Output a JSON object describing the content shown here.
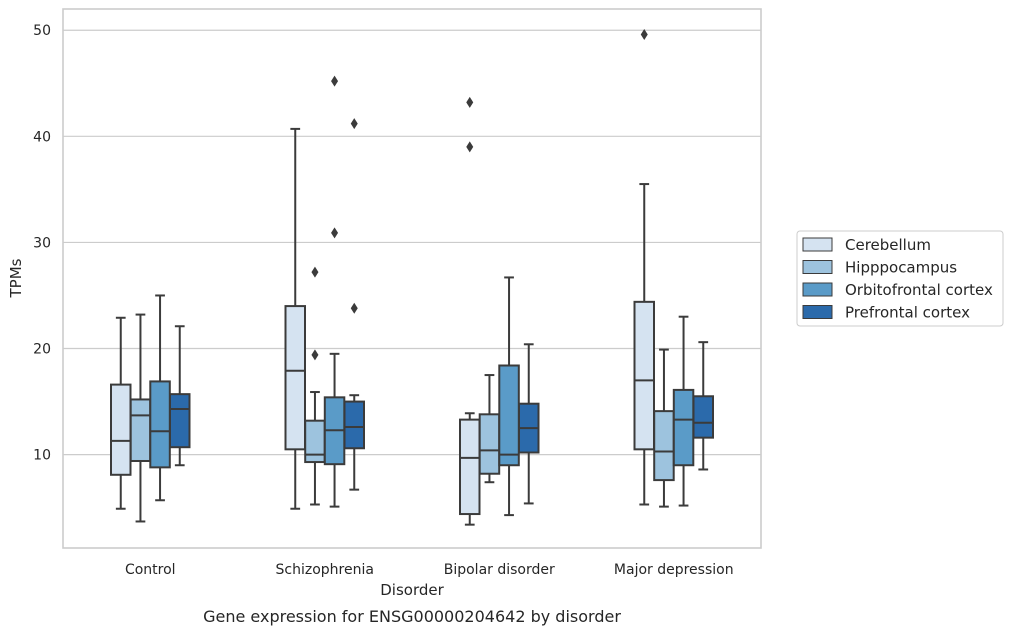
{
  "caption": "Gene expression for ENSG00000204642 by disorder",
  "chart_data": {
    "type": "box",
    "xlabel": "Disorder",
    "ylabel": "TPMs",
    "ylim": [
      1.2,
      52
    ],
    "yticks": [
      10,
      20,
      30,
      40,
      50
    ],
    "grid": "horizontal",
    "legend_position": "right",
    "categories": [
      "Control",
      "Schizophrenia",
      "Bipolar disorder",
      "Major depression"
    ],
    "series": [
      {
        "name": "Cerebellum",
        "color": "#d5e3f1",
        "boxes": [
          {
            "whisker_low": 4.9,
            "q1": 8.1,
            "median": 11.3,
            "q3": 16.6,
            "whisker_high": 22.9,
            "outliers": []
          },
          {
            "whisker_low": 4.9,
            "q1": 10.5,
            "median": 17.9,
            "q3": 24.0,
            "whisker_high": 40.7,
            "outliers": []
          },
          {
            "whisker_low": 3.4,
            "q1": 4.4,
            "median": 9.7,
            "q3": 13.3,
            "whisker_high": 13.9,
            "outliers": [
              39.0,
              43.2
            ]
          },
          {
            "whisker_low": 5.3,
            "q1": 10.5,
            "median": 17.0,
            "q3": 24.4,
            "whisker_high": 35.5,
            "outliers": [
              49.6
            ]
          }
        ]
      },
      {
        "name": "Hipppocampus",
        "color": "#9dc3de",
        "boxes": [
          {
            "whisker_low": 3.7,
            "q1": 9.4,
            "median": 13.7,
            "q3": 15.2,
            "whisker_high": 23.2,
            "outliers": []
          },
          {
            "whisker_low": 5.3,
            "q1": 9.3,
            "median": 10.0,
            "q3": 13.2,
            "whisker_high": 15.9,
            "outliers": [
              19.4,
              27.2
            ]
          },
          {
            "whisker_low": 7.4,
            "q1": 8.2,
            "median": 10.4,
            "q3": 13.8,
            "whisker_high": 17.5,
            "outliers": []
          },
          {
            "whisker_low": 5.1,
            "q1": 7.6,
            "median": 10.3,
            "q3": 14.1,
            "whisker_high": 19.9,
            "outliers": []
          }
        ]
      },
      {
        "name": "Orbitofrontal cortex",
        "color": "#5a9bc8",
        "boxes": [
          {
            "whisker_low": 5.7,
            "q1": 8.8,
            "median": 12.2,
            "q3": 16.9,
            "whisker_high": 25.0,
            "outliers": []
          },
          {
            "whisker_low": 5.1,
            "q1": 9.1,
            "median": 12.3,
            "q3": 15.4,
            "whisker_high": 19.5,
            "outliers": [
              30.9,
              45.2
            ]
          },
          {
            "whisker_low": 4.3,
            "q1": 9.0,
            "median": 10.0,
            "q3": 18.4,
            "whisker_high": 26.7,
            "outliers": []
          },
          {
            "whisker_low": 5.2,
            "q1": 9.0,
            "median": 13.3,
            "q3": 16.1,
            "whisker_high": 23.0,
            "outliers": []
          }
        ]
      },
      {
        "name": "Prefrontal cortex",
        "color": "#2b6aab",
        "boxes": [
          {
            "whisker_low": 9.0,
            "q1": 10.7,
            "median": 14.3,
            "q3": 15.7,
            "whisker_high": 22.1,
            "outliers": []
          },
          {
            "whisker_low": 6.7,
            "q1": 10.6,
            "median": 12.6,
            "q3": 15.0,
            "whisker_high": 15.6,
            "outliers": [
              23.8,
              41.2
            ]
          },
          {
            "whisker_low": 5.4,
            "q1": 10.2,
            "median": 12.5,
            "q3": 14.8,
            "whisker_high": 20.4,
            "outliers": []
          },
          {
            "whisker_low": 8.6,
            "q1": 11.6,
            "median": 13.0,
            "q3": 15.5,
            "whisker_high": 20.6,
            "outliers": []
          }
        ]
      }
    ]
  }
}
